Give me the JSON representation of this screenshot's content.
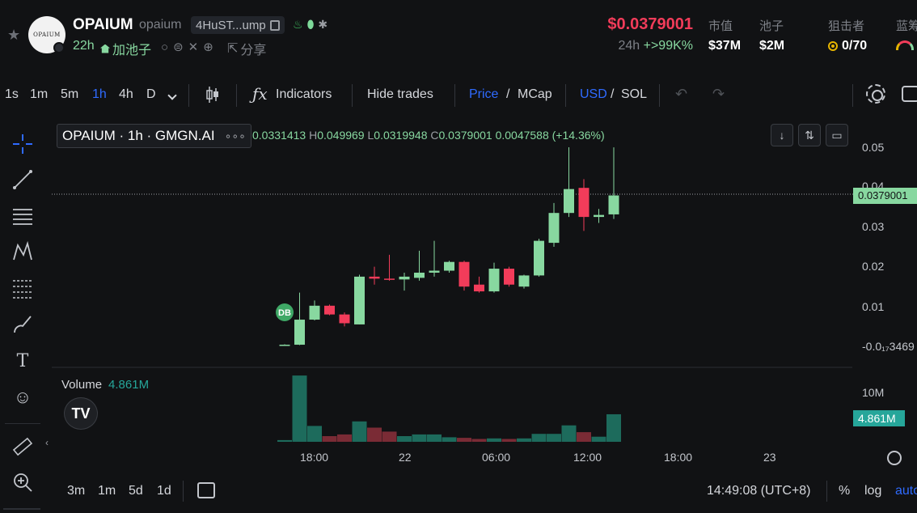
{
  "header": {
    "token_name": "OPAIUM",
    "token_symbol": "opaium",
    "address": "4HuST...ump",
    "age": "22h",
    "pool_label": "加池子",
    "share_label": "分享",
    "logo_text": "OPAIUM",
    "price": "$0.0379001",
    "change_period": "24h",
    "change_value": "+>99K%",
    "stats": {
      "mcap_label": "市值",
      "mcap_value": "$37M",
      "pool_label": "池子",
      "pool_value": "$2M",
      "sniper_label": "狙击者",
      "sniper_value": "0/70",
      "blue_label": "蓝筹"
    }
  },
  "toolbar": {
    "intervals": [
      "1s",
      "1m",
      "5m",
      "1h",
      "4h",
      "D"
    ],
    "active_interval": "1h",
    "indicators_label": "Indicators",
    "hide_trades_label": "Hide trades",
    "price_label": "Price",
    "mcap_label": "MCap",
    "usd_label": "USD",
    "sol_label": "SOL",
    "slash": "/"
  },
  "legend": {
    "title": "OPAIUM · 1h · GMGN.AI",
    "dots": "∘∘∘",
    "ohlc_open_value": "0.0331413",
    "ohlc_high_key": "H",
    "ohlc_high_value": "0.049969",
    "ohlc_low_key": "L",
    "ohlc_low_value": "0.0319948",
    "ohlc_close_key": "C",
    "ohlc_close_value": "0.0379001",
    "ohlc_change": "0.0047588 (+14.36%)"
  },
  "volume": {
    "label": "Volume",
    "value": "4.861M",
    "axis_label": "10M",
    "tag": "4.861M"
  },
  "price_axis": {
    "ticks": [
      "0.05",
      "0.04",
      "0.03",
      "0.02",
      "0.01",
      "-0.0₁₇3469"
    ],
    "current_tag": "0.0379001"
  },
  "time_axis": {
    "ticks": [
      "18:00",
      "22",
      "06:00",
      "12:00",
      "18:00",
      "23"
    ]
  },
  "marker": {
    "text": "DB"
  },
  "bottombar": {
    "ranges": [
      "3m",
      "1m",
      "5d",
      "1d"
    ],
    "clock": "14:49:08 (UTC+8)",
    "percent_label": "%",
    "log_label": "log",
    "auto_label": "auto"
  },
  "colors": {
    "up": "#88d8a0",
    "down": "#f23c5a",
    "vol_up": "#1d6b5c",
    "vol_down": "#7a2b35",
    "accent": "#2f6bff"
  },
  "chart_data": {
    "type": "candlestick",
    "interval": "1h",
    "series": [
      {
        "name": "price",
        "ohlc": [
          {
            "t": "16:00",
            "o": 0.0002,
            "h": 0.0005,
            "l": 0.0001,
            "c": 0.0004
          },
          {
            "t": "17:00",
            "o": 0.0004,
            "h": 0.0135,
            "l": 0.0003,
            "c": 0.0067
          },
          {
            "t": "18:00",
            "o": 0.0067,
            "h": 0.0115,
            "l": 0.0065,
            "c": 0.0102
          },
          {
            "t": "19:00",
            "o": 0.0102,
            "h": 0.0105,
            "l": 0.0078,
            "c": 0.008
          },
          {
            "t": "20:00",
            "o": 0.008,
            "h": 0.0085,
            "l": 0.005,
            "c": 0.0058
          },
          {
            "t": "21:00",
            "o": 0.0055,
            "h": 0.018,
            "l": 0.0055,
            "c": 0.0175
          },
          {
            "t": "22:00",
            "o": 0.0175,
            "h": 0.02,
            "l": 0.0155,
            "c": 0.017
          },
          {
            "t": "23:00",
            "o": 0.017,
            "h": 0.023,
            "l": 0.0165,
            "c": 0.0168
          },
          {
            "t": "00:00",
            "o": 0.0168,
            "h": 0.0185,
            "l": 0.014,
            "c": 0.0175
          },
          {
            "t": "01:00",
            "o": 0.0172,
            "h": 0.024,
            "l": 0.0165,
            "c": 0.0185
          },
          {
            "t": "02:00",
            "o": 0.0185,
            "h": 0.0265,
            "l": 0.0175,
            "c": 0.019
          },
          {
            "t": "03:00",
            "o": 0.019,
            "h": 0.0215,
            "l": 0.0185,
            "c": 0.0212
          },
          {
            "t": "04:00",
            "o": 0.0212,
            "h": 0.0215,
            "l": 0.014,
            "c": 0.015
          },
          {
            "t": "05:00",
            "o": 0.0155,
            "h": 0.0175,
            "l": 0.0135,
            "c": 0.0138
          },
          {
            "t": "06:00",
            "o": 0.0138,
            "h": 0.021,
            "l": 0.0135,
            "c": 0.0195
          },
          {
            "t": "07:00",
            "o": 0.0195,
            "h": 0.02,
            "l": 0.015,
            "c": 0.0155
          },
          {
            "t": "08:00",
            "o": 0.015,
            "h": 0.018,
            "l": 0.0145,
            "c": 0.0178
          },
          {
            "t": "09:00",
            "o": 0.0178,
            "h": 0.027,
            "l": 0.0175,
            "c": 0.0265
          },
          {
            "t": "10:00",
            "o": 0.026,
            "h": 0.036,
            "l": 0.025,
            "c": 0.0335
          },
          {
            "t": "11:00",
            "o": 0.0335,
            "h": 0.05,
            "l": 0.0325,
            "c": 0.0395
          },
          {
            "t": "12:00",
            "o": 0.0398,
            "h": 0.042,
            "l": 0.029,
            "c": 0.0325
          },
          {
            "t": "13:00",
            "o": 0.0325,
            "h": 0.0345,
            "l": 0.031,
            "c": 0.033
          },
          {
            "t": "14:00",
            "o": 0.0331413,
            "h": 0.049969,
            "l": 0.0319948,
            "c": 0.0379001
          }
        ]
      },
      {
        "name": "Volume",
        "values": [
          0.3,
          11.7,
          2.8,
          1.0,
          1.3,
          3.6,
          2.5,
          1.8,
          1.0,
          1.3,
          1.3,
          0.8,
          0.7,
          0.5,
          0.6,
          0.5,
          0.6,
          1.4,
          1.4,
          2.9,
          1.7,
          0.9,
          4.861
        ]
      }
    ],
    "ylim": [
      -0.0035,
      0.055
    ],
    "volume_ylim": [
      0,
      12
    ]
  }
}
